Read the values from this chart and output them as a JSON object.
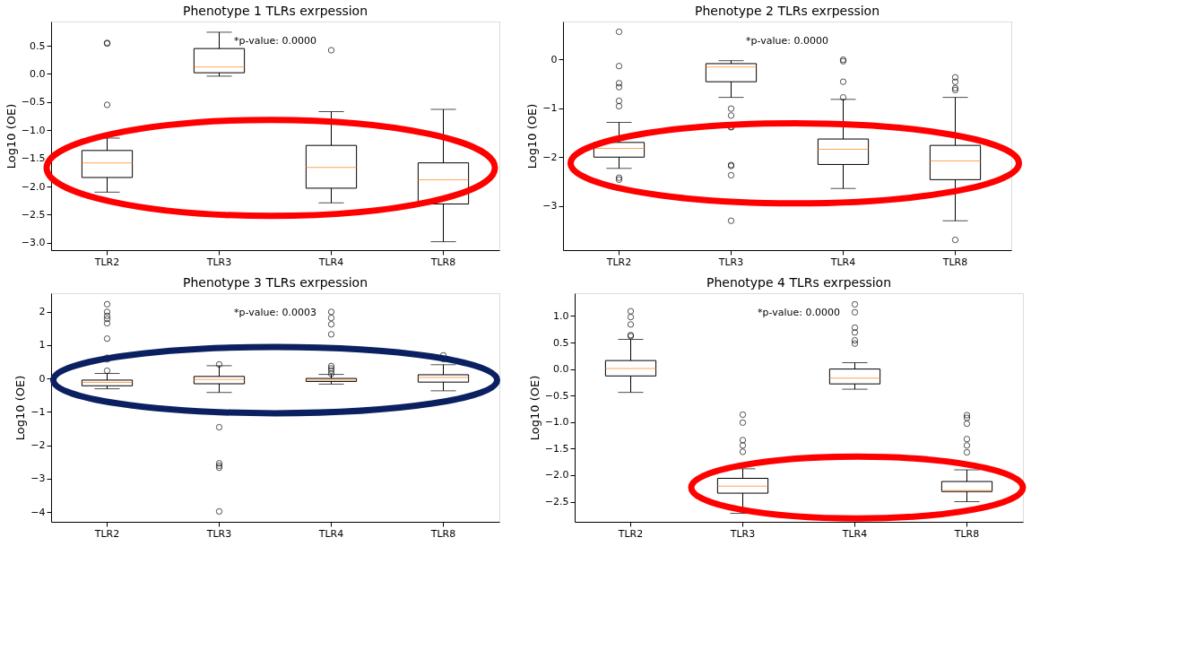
{
  "chart_data": [
    {
      "type": "box",
      "title": "Phenotype 1 TLRs exrpession",
      "ylabel": "Log10 (OE)",
      "categories": [
        "TLR2",
        "TLR3",
        "TLR4",
        "TLR8"
      ],
      "grid": false,
      "ylim": [
        -3.13,
        0.93
      ],
      "yticks": [
        {
          "value": -3.0,
          "label": "−3.0"
        },
        {
          "value": -2.5,
          "label": "−2.5"
        },
        {
          "value": -2.0,
          "label": "−2.0"
        },
        {
          "value": -1.5,
          "label": "−1.5"
        },
        {
          "value": -1.0,
          "label": "−1.0"
        },
        {
          "value": -0.5,
          "label": "−0.5"
        },
        {
          "value": 0,
          "label": "0.0"
        },
        {
          "value": 0.5,
          "label": "0.5"
        }
      ],
      "annotations": [
        "*p-value: 0.0000"
      ],
      "series": [
        {
          "color": "#000000",
          "boxes": [
            {
              "low": -2.1,
              "q1": -1.84,
              "median": -1.58,
              "q3": -1.36,
              "high": -1.14,
              "outliers": [
                0.55,
                0.54,
                -0.55
              ]
            },
            {
              "low": -0.04,
              "q1": 0.02,
              "median": 0.12,
              "q3": 0.45,
              "high": 0.74
            },
            {
              "low": -2.29,
              "q1": -2.03,
              "median": -1.66,
              "q3": -1.27,
              "high": -0.67,
              "outliers": [
                0.42
              ]
            },
            {
              "low": -2.98,
              "q1": -2.31,
              "median": -1.88,
              "q3": -1.58,
              "high": -0.63
            }
          ]
        }
      ]
    },
    {
      "type": "box",
      "title": "Phenotype 2 TLRs exrpession",
      "ylabel": "Log10 (OE)",
      "categories": [
        "TLR2",
        "TLR3",
        "TLR4",
        "TLR8"
      ],
      "grid": false,
      "ylim": [
        -3.9,
        0.77
      ],
      "yticks": [
        {
          "value": -3,
          "label": "−3"
        },
        {
          "value": -2,
          "label": "−2"
        },
        {
          "value": -1,
          "label": "−1"
        },
        0
      ],
      "annotations": [
        "*p-value: 0.0000"
      ],
      "series": [
        {
          "color": "#000000",
          "boxes": [
            {
              "low": -2.23,
              "q1": -2.0,
              "median": -1.82,
              "q3": -1.7,
              "high": -1.29,
              "outliers": [
                0.56,
                -0.14,
                -0.49,
                -0.57,
                -0.85,
                -0.96,
                -2.42,
                -2.46
              ]
            },
            {
              "low": -0.78,
              "q1": -0.46,
              "median": -0.16,
              "q3": -0.09,
              "high": -0.03,
              "outliers": [
                -1.01,
                -1.15,
                -1.38,
                -1.39,
                -2.16,
                -2.18,
                -2.37,
                -3.3
              ]
            },
            {
              "low": -2.64,
              "q1": -2.15,
              "median": -1.84,
              "q3": -1.63,
              "high": -0.82,
              "outliers": [
                -0.01,
                -0.04,
                -0.46,
                -0.78
              ]
            },
            {
              "low": -3.3,
              "q1": -2.46,
              "median": -2.08,
              "q3": -1.76,
              "high": -0.78,
              "outliers": [
                -0.37,
                -0.46,
                -0.59,
                -0.63,
                -3.69
              ]
            }
          ]
        }
      ]
    },
    {
      "type": "box",
      "title": "Phenotype 3 TLRs exrpession",
      "ylabel": "Log10 (OE)",
      "categories": [
        "TLR2",
        "TLR3",
        "TLR4",
        "TLR8"
      ],
      "grid": false,
      "ylim": [
        -4.29,
        2.55
      ],
      "yticks": [
        {
          "value": -4,
          "label": "−4"
        },
        {
          "value": -3,
          "label": "−3"
        },
        {
          "value": -2,
          "label": "−2"
        },
        {
          "value": -1,
          "label": "−1"
        },
        0,
        1,
        2
      ],
      "annotations": [
        "*p-value: 0.0003"
      ],
      "series": [
        {
          "color": "#000000",
          "boxes": [
            {
              "low": -0.31,
              "q1": -0.22,
              "median": -0.12,
              "q3": -0.05,
              "high": 0.15,
              "outliers": [
                2.22,
                1.99,
                1.87,
                1.78,
                1.65,
                1.19,
                0.62,
                0.57,
                0.23
              ]
            },
            {
              "low": -0.42,
              "q1": -0.16,
              "median": -0.03,
              "q3": 0.06,
              "high": 0.38,
              "outliers": [
                0.42,
                -1.46,
                -2.54,
                -2.61,
                -2.67,
                -3.98
              ]
            },
            {
              "low": -0.17,
              "q1": -0.09,
              "median": -0.05,
              "q3": 0.0,
              "high": 0.12,
              "outliers": [
                1.99,
                1.81,
                1.62,
                1.32,
                0.37,
                0.3,
                0.23,
                0.14
              ]
            },
            {
              "low": -0.37,
              "q1": -0.11,
              "median": 0.03,
              "q3": 0.11,
              "high": 0.41,
              "outliers": [
                0.69,
                0.58
              ]
            }
          ]
        }
      ]
    },
    {
      "type": "box",
      "title": "Phenotype 4 TLRs exrpession",
      "ylabel": "Log10 (OE)",
      "categories": [
        "TLR2",
        "TLR3",
        "TLR4",
        "TLR8"
      ],
      "grid": false,
      "ylim": [
        -2.88,
        1.43
      ],
      "yticks": [
        {
          "value": -2.5,
          "label": "−2.5"
        },
        {
          "value": -2.0,
          "label": "−2.0"
        },
        {
          "value": -1.5,
          "label": "−1.5"
        },
        {
          "value": -1.0,
          "label": "−1.0"
        },
        {
          "value": -0.5,
          "label": "−0.5"
        },
        {
          "value": 0,
          "label": "0.0"
        },
        {
          "value": 0.5,
          "label": "0.5"
        },
        {
          "value": 1.0,
          "label": "1.0"
        }
      ],
      "annotations": [
        "*p-value: 0.0000"
      ],
      "series": [
        {
          "color": "#000000",
          "boxes": [
            {
              "low": -0.44,
              "q1": -0.13,
              "median": 0.01,
              "q3": 0.16,
              "high": 0.56,
              "outliers": [
                1.09,
                0.98,
                0.84,
                0.64,
                0.62
              ]
            },
            {
              "low": -2.72,
              "q1": -2.34,
              "median": -2.21,
              "q3": -2.06,
              "high": -1.88,
              "outliers": [
                -0.86,
                -1.01,
                -1.34,
                -1.44,
                -1.56
              ]
            },
            {
              "low": -0.38,
              "q1": -0.28,
              "median": -0.17,
              "q3": 0.0,
              "high": 0.12,
              "outliers": [
                1.22,
                1.07,
                0.78,
                0.69,
                0.54,
                0.48
              ]
            },
            {
              "low": -2.5,
              "q1": -2.31,
              "median": -2.29,
              "q3": -2.12,
              "high": -1.9,
              "outliers": [
                -0.87,
                -0.92,
                -1.03,
                -1.32,
                -1.44,
                -1.57
              ]
            }
          ]
        }
      ]
    }
  ]
}
